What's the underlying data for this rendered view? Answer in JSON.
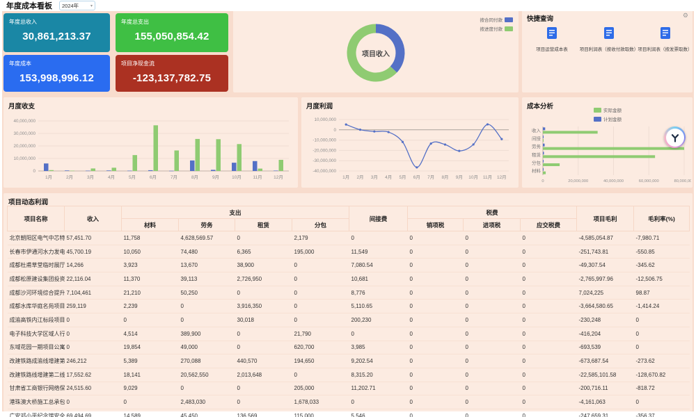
{
  "topbar": {
    "title": "年度成本看板",
    "year": "2024年"
  },
  "kpis": [
    {
      "label": "年度总收入",
      "value": "30,861,213.37",
      "color": "#1a87a5"
    },
    {
      "label": "年度总支出",
      "value": "155,050,854.42",
      "color": "#3fbf44"
    },
    {
      "label": "年度成本",
      "value": "153,998,996.12",
      "color": "#2a6cf0"
    },
    {
      "label": "项目净现金流",
      "value": "-123,137,782.75",
      "color": "#ab3122"
    }
  ],
  "quick_query": {
    "title": "快捷查询",
    "items": [
      "项目运营成本表",
      "项目利润表（按收付款取数）",
      "项目利润表（按发票取数）"
    ]
  },
  "chart_data": [
    {
      "id": "project_income_donut",
      "type": "pie",
      "title": "项目收入",
      "center_label": "项目收入",
      "legend": [
        {
          "label": "按合同付款",
          "color": "#5470c6"
        },
        {
          "label": "按进度付款",
          "color": "#8fcb72"
        }
      ],
      "slices": [
        {
          "label": "按合同付款",
          "value": 37,
          "color": "#5470c6"
        },
        {
          "label": "按进度付款",
          "value": 63,
          "color": "#8fcb72"
        }
      ]
    },
    {
      "id": "monthly_flow",
      "type": "bar",
      "title": "月度收支",
      "categories": [
        "1月",
        "2月",
        "3月",
        "4月",
        "5月",
        "6月",
        "7月",
        "8月",
        "9月",
        "10月",
        "11月",
        "12月"
      ],
      "series": [
        {
          "name": "收入",
          "color": "#5470c6",
          "values": [
            6000000,
            400000,
            250000,
            400000,
            250000,
            600000,
            150000,
            8400000,
            900000,
            6600000,
            7900000,
            300000
          ]
        },
        {
          "name": "支出",
          "color": "#8fcb72",
          "values": [
            700000,
            250000,
            2000000,
            2600000,
            12700000,
            36500000,
            16400000,
            25600000,
            25400000,
            21500000,
            1900000,
            8900000
          ]
        }
      ],
      "ylim": [
        0,
        40000000
      ],
      "yticks": [
        0,
        10000000,
        20000000,
        30000000,
        40000000
      ]
    },
    {
      "id": "monthly_profit",
      "type": "line",
      "title": "月度利润",
      "color": "#5470c6",
      "categories": [
        "1月",
        "2月",
        "3月",
        "4月",
        "5月",
        "6月",
        "7月",
        "8月",
        "9月",
        "10月",
        "11月",
        "12月"
      ],
      "values": [
        5200000,
        100000,
        -1600000,
        -2200000,
        -11800000,
        -36500000,
        -13400000,
        -14300000,
        -20500000,
        -14200000,
        5300000,
        -9000000
      ],
      "ylim": [
        -40000000,
        10000000
      ],
      "yticks": [
        10000000,
        0,
        -10000000,
        -20000000,
        -30000000,
        -40000000
      ]
    },
    {
      "id": "cost_analysis",
      "type": "hbar",
      "title": "成本分析",
      "categories": [
        "收入",
        "间接",
        "劳务",
        "租赁",
        "分包",
        "材料"
      ],
      "series": [
        {
          "name": "实际金额",
          "color": "#8fcb72",
          "values": [
            31000000,
            400000,
            80000000,
            63500000,
            9500000,
            1600000
          ]
        },
        {
          "name": "计划金额",
          "color": "#5470c6",
          "values": [
            1300000,
            150000,
            1000000,
            600000,
            400000,
            300000
          ]
        }
      ],
      "xlim": [
        0,
        80000000
      ],
      "xticks": [
        0,
        20000000,
        40000000,
        60000000,
        80000000
      ]
    }
  ],
  "table": {
    "title": "项目动态利润",
    "headers": {
      "project": "项目名称",
      "income": "收入",
      "expense_group": "支出",
      "material": "材料",
      "labor": "劳务",
      "rent": "租赁",
      "subcontract": "分包",
      "indirect": "间接费",
      "tax_group": "税费",
      "output_tax": "销项税",
      "input_tax": "进项税",
      "payable_tax": "应交税费",
      "gross": "项目毛利",
      "margin": "毛利率(%)"
    },
    "rows": [
      [
        "北京朝阳区电气中芯特气系统之G",
        "57,451.70",
        "11,758",
        "4,628,569.57",
        "0",
        "2,179",
        "0",
        "0",
        "0",
        "0",
        "-4,585,054.87",
        "-7,980.71"
      ],
      [
        "长春市伊通河水力发电厂改建工程",
        "45,700.19",
        "10,050",
        "74,480",
        "6,365",
        "195,000",
        "11,549",
        "0",
        "0",
        "0",
        "-251,743.81",
        "-550.85"
      ],
      [
        "成都杜甫草堂临时展厅独立展相送",
        "14,266",
        "3,923",
        "13,670",
        "38,900",
        "0",
        "7,080.54",
        "0",
        "0",
        "0",
        "-49,307.54",
        "-345.62"
      ],
      [
        "成都松原建设集团投资有限公司办",
        "22,116.04",
        "11,370",
        "39,113",
        "2,726,950",
        "0",
        "10,681",
        "0",
        "0",
        "0",
        "-2,765,997.96",
        "-12,506.75"
      ],
      [
        "成都沙河环境综合提升改造运河沿",
        "7,104,461",
        "21,210",
        "50,250",
        "0",
        "0",
        "8,776",
        "0",
        "0",
        "0",
        "7,024,225",
        "98.87"
      ],
      [
        "成都水库华庭名苑项目一标段",
        "259,119",
        "2,239",
        "0",
        "3,916,350",
        "0",
        "5,110.65",
        "0",
        "0",
        "0",
        "-3,664,580.65",
        "-1,414.24"
      ],
      [
        "成渝高铁内江标段项目",
        "0",
        "0",
        "0",
        "30,018",
        "0",
        "200,230",
        "0",
        "0",
        "0",
        "-230,248",
        "0"
      ],
      [
        "电子科技大学区域人行道及非机动",
        "0",
        "4,514",
        "389,900",
        "0",
        "21,790",
        "0",
        "0",
        "0",
        "0",
        "-416,204",
        "0"
      ],
      [
        "东域花园一期项目公寓大堂 装饰工",
        "0",
        "19,854",
        "49,000",
        "0",
        "620,700",
        "3,985",
        "0",
        "0",
        "0",
        "-693,539",
        "0"
      ],
      [
        "改建铁路成渝线增建第二直通线（",
        "246,212",
        "5,389",
        "270,088",
        "440,570",
        "194,650",
        "9,202.54",
        "0",
        "0",
        "0",
        "-673,687.54",
        "-273.62"
      ],
      [
        "改建铁路线增建第二线直通线（总",
        "17,552.62",
        "18,141",
        "20,562,550",
        "2,013,648",
        "0",
        "8,315.20",
        "0",
        "0",
        "0",
        "-22,585,101.58",
        "-128,670.82"
      ],
      [
        "甘肃省工商银行网络保养项目",
        "24,515.60",
        "9,029",
        "0",
        "0",
        "205,000",
        "11,202.71",
        "0",
        "0",
        "0",
        "-200,716.11",
        "-818.72"
      ],
      [
        "港珠澳大桥施工总承包项目",
        "0",
        "0",
        "2,483,030",
        "0",
        "1,678,033",
        "0",
        "0",
        "0",
        "0",
        "-4,161,063",
        "0"
      ],
      [
        "广安邓小平纪念馆安全防范系统维",
        "69,494.69",
        "14,589",
        "45,450",
        "136,569",
        "115,000",
        "5,546",
        "0",
        "0",
        "0",
        "-247,659.31",
        "-356.37"
      ]
    ]
  }
}
